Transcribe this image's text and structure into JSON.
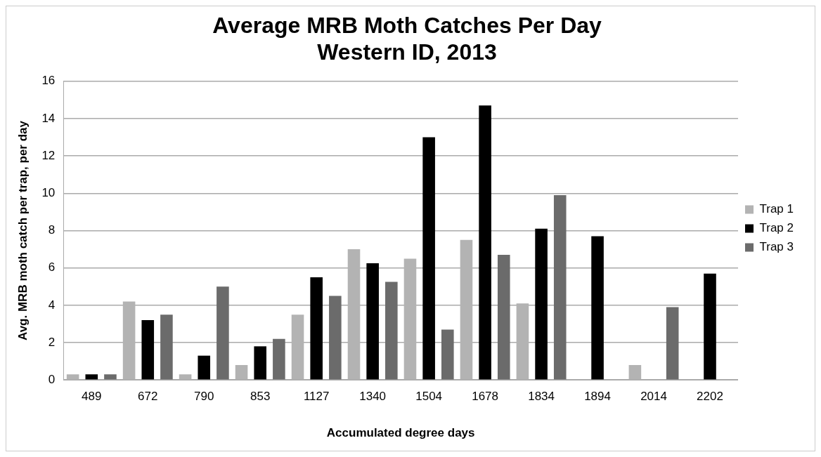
{
  "chart_data": {
    "type": "bar",
    "title": [
      "Average MRB Moth Catches Per Day",
      "Western ID, 2013"
    ],
    "xlabel": "Accumulated degree days",
    "ylabel": "Avg. MRB moth catch per trap, per day",
    "categories": [
      "489",
      "672",
      "790",
      "853",
      "1127",
      "1340",
      "1504",
      "1678",
      "1834",
      "1894",
      "2014",
      "2202"
    ],
    "series": [
      {
        "name": "Trap 1",
        "color": "#b3b3b3",
        "values": [
          0.3,
          4.2,
          0.3,
          0.8,
          3.5,
          7.0,
          6.5,
          7.5,
          4.1,
          0,
          0.8,
          0
        ]
      },
      {
        "name": "Trap 2",
        "color": "#000000",
        "values": [
          0.3,
          3.2,
          1.3,
          1.8,
          5.5,
          6.25,
          13.0,
          14.7,
          8.1,
          7.7,
          0,
          5.7
        ]
      },
      {
        "name": "Trap 3",
        "color": "#6b6b6b",
        "values": [
          0.3,
          3.5,
          5.0,
          2.2,
          4.5,
          5.25,
          2.7,
          6.7,
          9.9,
          0,
          3.9,
          0
        ]
      }
    ],
    "ylim": [
      0,
      16
    ],
    "yticks": [
      0,
      2,
      4,
      6,
      8,
      10,
      12,
      14,
      16
    ],
    "grid": "y",
    "legend": "right"
  }
}
